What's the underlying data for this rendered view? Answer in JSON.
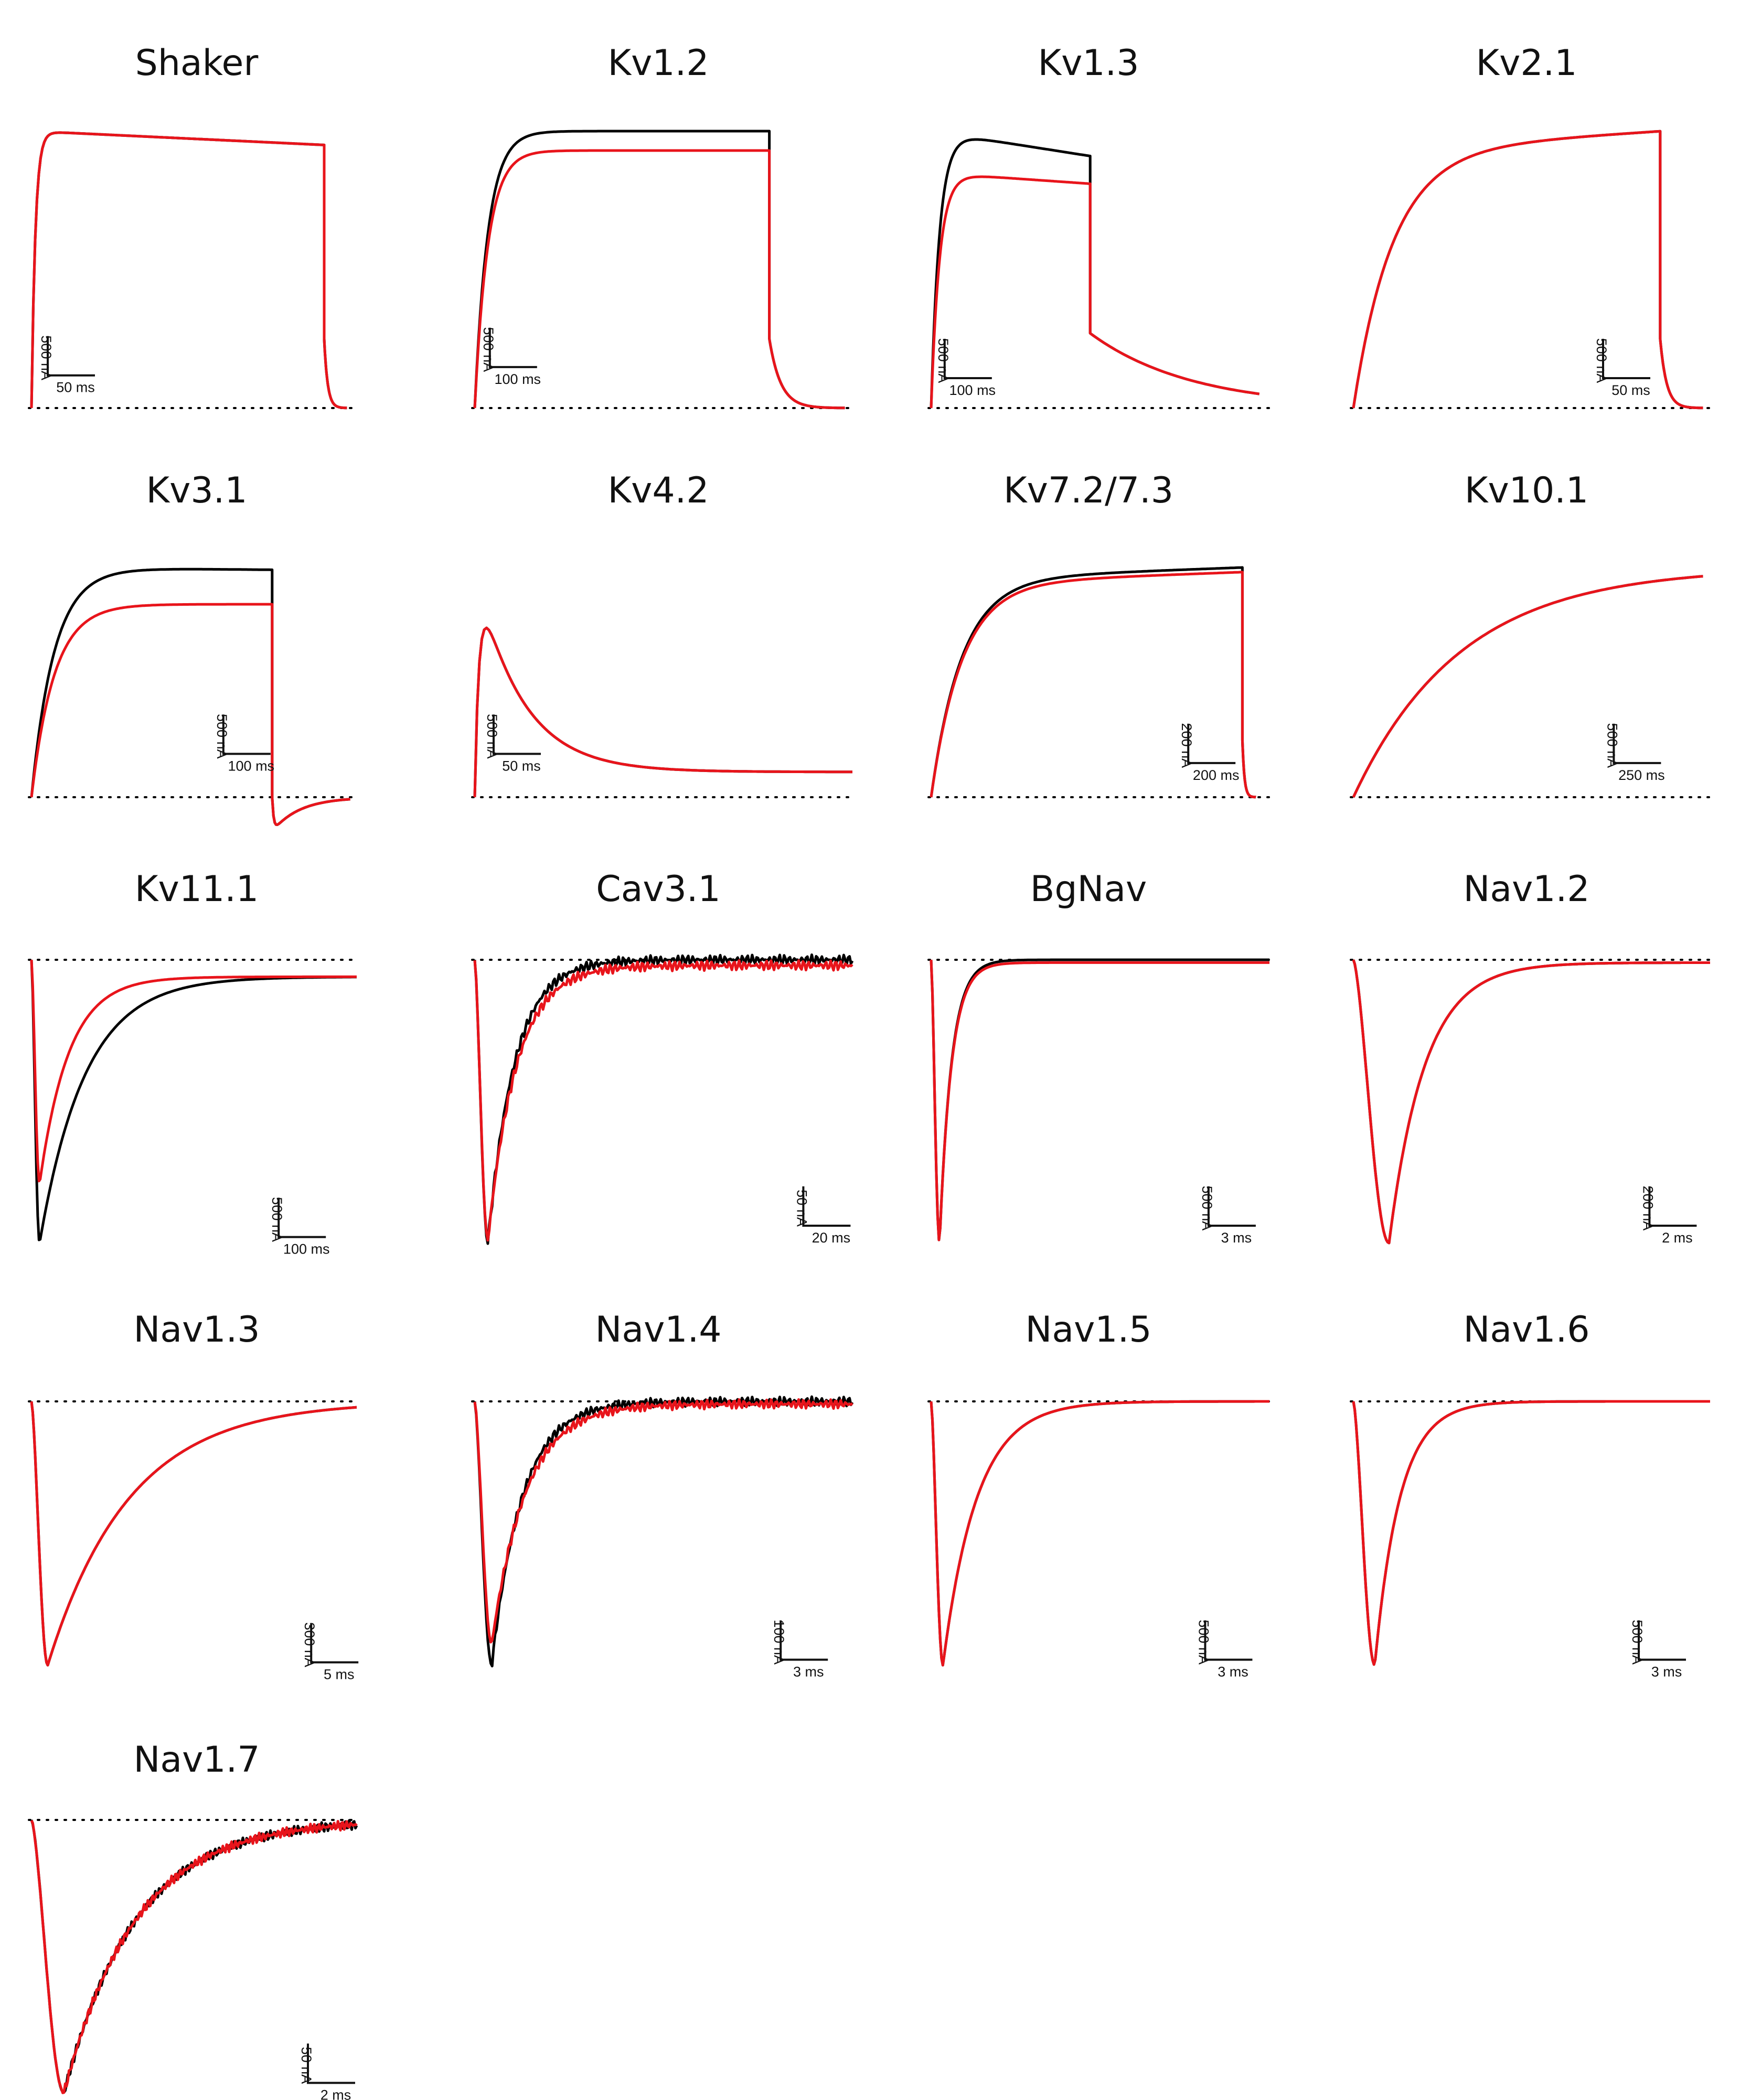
{
  "figure": {
    "trace_colors": {
      "control": "#000000",
      "treated": "#e8141b",
      "baseline": "#000000"
    }
  },
  "chart_data": [
    {
      "type": "line",
      "title": "Shaker",
      "polarity": "outward",
      "scale_bar": {
        "current": "500 nA",
        "time": "50 ms"
      },
      "series": [
        {
          "color": "#000000",
          "shape": "step",
          "peak": 1.0,
          "plateau_end": 0.95,
          "tail": 0.0
        },
        {
          "color": "#e8141b",
          "shape": "step",
          "peak": 1.0,
          "plateau_end": 0.95,
          "tail": 0.0
        }
      ]
    },
    {
      "type": "line",
      "title": "Kv1.2",
      "polarity": "outward",
      "scale_bar": {
        "current": "500 nA",
        "time": "100 ms"
      },
      "series": [
        {
          "color": "#000000",
          "shape": "step",
          "peak": 1.0,
          "plateau_end": 1.0,
          "tail": 0.0
        },
        {
          "color": "#e8141b",
          "shape": "step",
          "peak": 0.93,
          "plateau_end": 0.93,
          "tail": 0.0
        }
      ]
    },
    {
      "type": "line",
      "title": "Kv1.3",
      "polarity": "outward",
      "scale_bar": {
        "current": "500 nA",
        "time": "100 ms"
      },
      "series": [
        {
          "color": "#000000",
          "shape": "step",
          "peak": 1.0,
          "plateau_end": 0.91,
          "tail": 0.27
        },
        {
          "color": "#e8141b",
          "shape": "step",
          "peak": 0.85,
          "plateau_end": 0.81,
          "tail": 0.27
        }
      ]
    },
    {
      "type": "line",
      "title": "Kv2.1",
      "polarity": "outward",
      "scale_bar": {
        "current": "500 nA",
        "time": "50 ms"
      },
      "series": [
        {
          "color": "#000000",
          "shape": "step",
          "peak": 0.93,
          "plateau_end": 1.0,
          "tail": 0.0
        },
        {
          "color": "#e8141b",
          "shape": "step",
          "peak": 0.93,
          "plateau_end": 1.0,
          "tail": 0.0
        }
      ]
    },
    {
      "type": "line",
      "title": "Kv3.1",
      "polarity": "outward",
      "scale_bar": {
        "current": "500 nA",
        "time": "100 ms"
      },
      "series": [
        {
          "color": "#000000",
          "shape": "step",
          "peak": 1.0,
          "plateau_end": 0.99,
          "tail": -0.15
        },
        {
          "color": "#e8141b",
          "shape": "step",
          "peak": 0.84,
          "plateau_end": 0.84,
          "tail": -0.15
        }
      ]
    },
    {
      "type": "line",
      "title": "Kv4.2",
      "polarity": "outward",
      "scale_bar": {
        "current": "500 nA",
        "time": "50 ms"
      },
      "series": [
        {
          "color": "#000000",
          "shape": "transient",
          "peak": 1.0,
          "plateau_end": 0.11,
          "tail": 0.0
        },
        {
          "color": "#e8141b",
          "shape": "transient",
          "peak": 1.0,
          "plateau_end": 0.11,
          "tail": 0.0
        }
      ]
    },
    {
      "type": "line",
      "title": "Kv7.2/7.3",
      "polarity": "outward",
      "scale_bar": {
        "current": "200 nA",
        "time": "200 ms"
      },
      "series": [
        {
          "color": "#000000",
          "shape": "step",
          "peak": 0.95,
          "plateau_end": 1.0,
          "tail": 0.0
        },
        {
          "color": "#e8141b",
          "shape": "step",
          "peak": 0.93,
          "plateau_end": 0.98,
          "tail": 0.0
        }
      ]
    },
    {
      "type": "line",
      "title": "Kv10.1",
      "polarity": "outward",
      "scale_bar": {
        "current": "500 nA",
        "time": "250 ms"
      },
      "series": [
        {
          "color": "#000000",
          "shape": "step",
          "peak": 1.0,
          "plateau_end": 1.0,
          "tail": 0.0
        },
        {
          "color": "#e8141b",
          "shape": "step",
          "peak": 1.0,
          "plateau_end": 1.0,
          "tail": 0.0
        }
      ]
    },
    {
      "type": "line",
      "title": "Kv11.1",
      "polarity": "inward",
      "scale_bar": {
        "current": "500 nA",
        "time": "100 ms"
      },
      "series": [
        {
          "color": "#000000",
          "shape": "inward",
          "peak": 1.0,
          "plateau_end": 0.06,
          "tail": 0.0
        },
        {
          "color": "#e8141b",
          "shape": "inward",
          "peak": 0.79,
          "plateau_end": 0.06,
          "tail": 0.0
        }
      ]
    },
    {
      "type": "line",
      "title": "Cav3.1",
      "polarity": "inward",
      "scale_bar": {
        "current": "50 nA",
        "time": "20 ms"
      },
      "series": [
        {
          "color": "#000000",
          "shape": "inward",
          "peak": 1.0,
          "plateau_end": 0.0,
          "tail": 0.0
        },
        {
          "color": "#e8141b",
          "shape": "inward",
          "peak": 0.99,
          "plateau_end": 0.02,
          "tail": 0.0
        }
      ]
    },
    {
      "type": "line",
      "title": "BgNav",
      "polarity": "inward",
      "scale_bar": {
        "current": "500 nA",
        "time": "3 ms"
      },
      "series": [
        {
          "color": "#000000",
          "shape": "inward",
          "peak": 1.0,
          "plateau_end": 0.0,
          "tail": 0.0
        },
        {
          "color": "#e8141b",
          "shape": "inward",
          "peak": 1.0,
          "plateau_end": 0.01,
          "tail": 0.0
        }
      ]
    },
    {
      "type": "line",
      "title": "Nav1.2",
      "polarity": "inward",
      "scale_bar": {
        "current": "200 nA",
        "time": "2 ms"
      },
      "series": [
        {
          "color": "#000000",
          "shape": "inward",
          "peak": 1.0,
          "plateau_end": 0.01,
          "tail": 0.0
        },
        {
          "color": "#e8141b",
          "shape": "inward",
          "peak": 1.0,
          "plateau_end": 0.01,
          "tail": 0.0
        }
      ]
    },
    {
      "type": "line",
      "title": "Nav1.3",
      "polarity": "inward",
      "scale_bar": {
        "current": "300 nA",
        "time": "5 ms"
      },
      "series": [
        {
          "color": "#000000",
          "shape": "inward",
          "peak": 1.0,
          "plateau_end": 0.0,
          "tail": 0.0
        },
        {
          "color": "#e8141b",
          "shape": "inward",
          "peak": 1.0,
          "plateau_end": 0.0,
          "tail": 0.0
        }
      ]
    },
    {
      "type": "line",
      "title": "Nav1.4",
      "polarity": "inward",
      "scale_bar": {
        "current": "100 nA",
        "time": "3 ms"
      },
      "series": [
        {
          "color": "#000000",
          "shape": "inward",
          "peak": 1.0,
          "plateau_end": 0.0,
          "tail": 0.0
        },
        {
          "color": "#e8141b",
          "shape": "inward",
          "peak": 0.92,
          "plateau_end": 0.01,
          "tail": 0.0
        }
      ]
    },
    {
      "type": "line",
      "title": "Nav1.5",
      "polarity": "inward",
      "scale_bar": {
        "current": "500 nA",
        "time": "3 ms"
      },
      "series": [
        {
          "color": "#000000",
          "shape": "inward",
          "peak": 1.0,
          "plateau_end": 0.0,
          "tail": 0.0
        },
        {
          "color": "#e8141b",
          "shape": "inward",
          "peak": 1.0,
          "plateau_end": 0.0,
          "tail": 0.0
        }
      ]
    },
    {
      "type": "line",
      "title": "Nav1.6",
      "polarity": "inward",
      "scale_bar": {
        "current": "500 nA",
        "time": "3 ms"
      },
      "series": [
        {
          "color": "#000000",
          "shape": "inward",
          "peak": 1.0,
          "plateau_end": 0.0,
          "tail": 0.0
        },
        {
          "color": "#e8141b",
          "shape": "inward",
          "peak": 1.0,
          "plateau_end": 0.0,
          "tail": 0.0
        }
      ]
    },
    {
      "type": "line",
      "title": "Nav1.7",
      "polarity": "inward",
      "scale_bar": {
        "current": "50 nA",
        "time": "2 ms"
      },
      "series": [
        {
          "color": "#000000",
          "shape": "inward",
          "peak": 1.0,
          "plateau_end": 0.0,
          "tail": 0.0
        },
        {
          "color": "#e8141b",
          "shape": "inward",
          "peak": 1.0,
          "plateau_end": 0.0,
          "tail": 0.0
        }
      ]
    }
  ]
}
